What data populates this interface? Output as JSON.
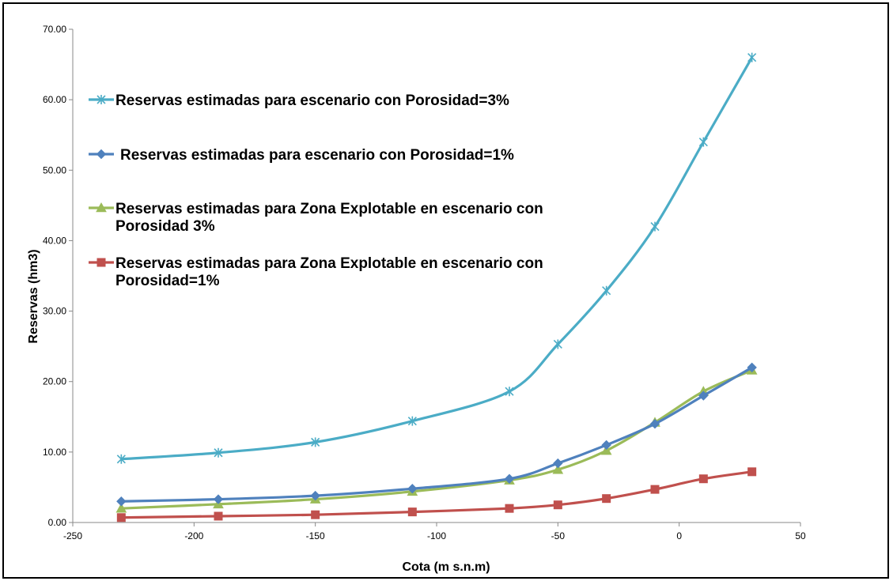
{
  "chart_data": {
    "type": "line",
    "xlabel": "Cota (m s.n.m)",
    "ylabel": "Reservas (hm3)",
    "xlim": [
      -250,
      50
    ],
    "ylim": [
      0,
      70
    ],
    "x_ticks": [
      -250,
      -200,
      -150,
      -100,
      -50,
      0,
      50
    ],
    "y_ticks": [
      "0.00",
      "10.00",
      "20.00",
      "30.00",
      "40.00",
      "50.00",
      "60.00",
      "70.00"
    ],
    "y_tick_values": [
      0,
      10,
      20,
      30,
      40,
      50,
      60,
      70
    ],
    "grid": false,
    "legend_position": "upper-left inside plot",
    "x": [
      -230,
      -190,
      -150,
      -110,
      -70,
      -50,
      -30,
      -10,
      10,
      30
    ],
    "series": [
      {
        "name": "Reservas estimadas para escenario con Porosidad=3%",
        "legend_lines": [
          "Reservas estimadas para escenario con Porosidad=3%"
        ],
        "color": "#4bacc6",
        "marker": "star",
        "values": [
          9.0,
          9.9,
          11.4,
          14.4,
          18.6,
          25.3,
          32.9,
          42.0,
          54.0,
          66.0
        ]
      },
      {
        "name": "Reservas estimadas para escenario con Porosidad=1%",
        "legend_lines": [
          "Reservas estimadas para escenario con Porosidad=1%"
        ],
        "color": "#4f81bd",
        "marker": "diamond",
        "values": [
          3.0,
          3.3,
          3.8,
          4.8,
          6.2,
          8.4,
          11.0,
          14.0,
          18.0,
          22.0
        ]
      },
      {
        "name": "Reservas estimadas para Zona Explotable en escenario con Porosidad 3%",
        "legend_lines": [
          "Reservas estimadas para Zona Explotable en escenario con",
          "Porosidad 3%"
        ],
        "color": "#9bbb59",
        "marker": "triangle",
        "values": [
          2.0,
          2.6,
          3.3,
          4.4,
          6.0,
          7.5,
          10.2,
          14.2,
          18.6,
          21.6
        ]
      },
      {
        "name": "Reservas estimadas para Zona Explotable en escenario con Porosidad=1%",
        "legend_lines": [
          "Reservas estimadas para Zona Explotable en escenario con",
          "Porosidad=1%"
        ],
        "color": "#c0504d",
        "marker": "square",
        "values": [
          0.7,
          0.9,
          1.1,
          1.5,
          2.0,
          2.5,
          3.4,
          4.7,
          6.2,
          7.2
        ]
      }
    ]
  }
}
